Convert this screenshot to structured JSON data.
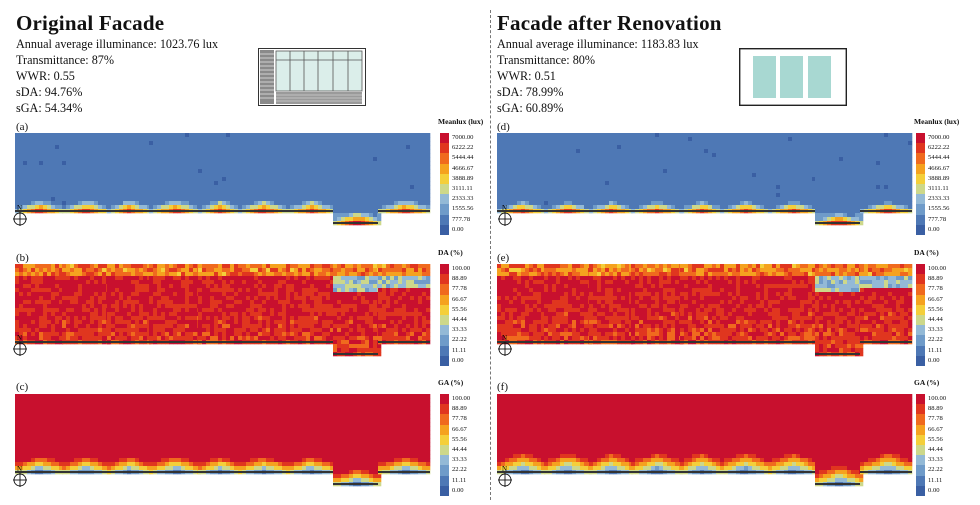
{
  "left": {
    "title": "Original Facade",
    "stats": [
      "Annual average illuminance: 1023.76 lux",
      "Transmittance:  87%",
      "WWR: 0.55",
      "sDA: 94.76%",
      "sGA: 54.34%"
    ],
    "panels": [
      {
        "label": "(a)",
        "metric": "illuminance"
      },
      {
        "label": "(b)",
        "metric": "da"
      },
      {
        "label": "(c)",
        "metric": "ga"
      }
    ]
  },
  "right": {
    "title": "Facade after Renovation",
    "stats": [
      "Annual average illuminance: 1183.83 lux",
      "Transmittance:  80%",
      "WWR: 0.51",
      "sDA: 78.99%",
      "sGA: 60.89%"
    ],
    "panels": [
      {
        "label": "(d)",
        "metric": "illuminance"
      },
      {
        "label": "(e)",
        "metric": "da"
      },
      {
        "label": "(f)",
        "metric": "ga"
      }
    ]
  },
  "scales": {
    "illuminance": {
      "title": "Meanlux (lux)",
      "ticks": [
        "7000.00",
        "6222.22",
        "5444.44",
        "4666.67",
        "3888.89",
        "3111.11",
        "2333.33",
        "1555.56",
        "777.78",
        "0.00"
      ]
    },
    "da": {
      "title": "DA (%)",
      "ticks": [
        "100.00",
        "88.89",
        "77.78",
        "66.67",
        "55.56",
        "44.44",
        "33.33",
        "22.22",
        "11.11",
        "0.00"
      ]
    },
    "ga": {
      "title": "GA (%)",
      "ticks": [
        "100.00",
        "88.89",
        "77.78",
        "66.67",
        "55.56",
        "44.44",
        "33.33",
        "22.22",
        "11.11",
        "0.00"
      ]
    }
  },
  "compass_label": "N",
  "colors": {
    "scale": [
      "#c8102e",
      "#e0361f",
      "#f06a1e",
      "#f5a21f",
      "#f4cf3a",
      "#cdd88a",
      "#93b9d6",
      "#6f9bc9",
      "#4e78b5",
      "#3a5fa3"
    ],
    "glazing_new": "#a8d8d2"
  }
}
